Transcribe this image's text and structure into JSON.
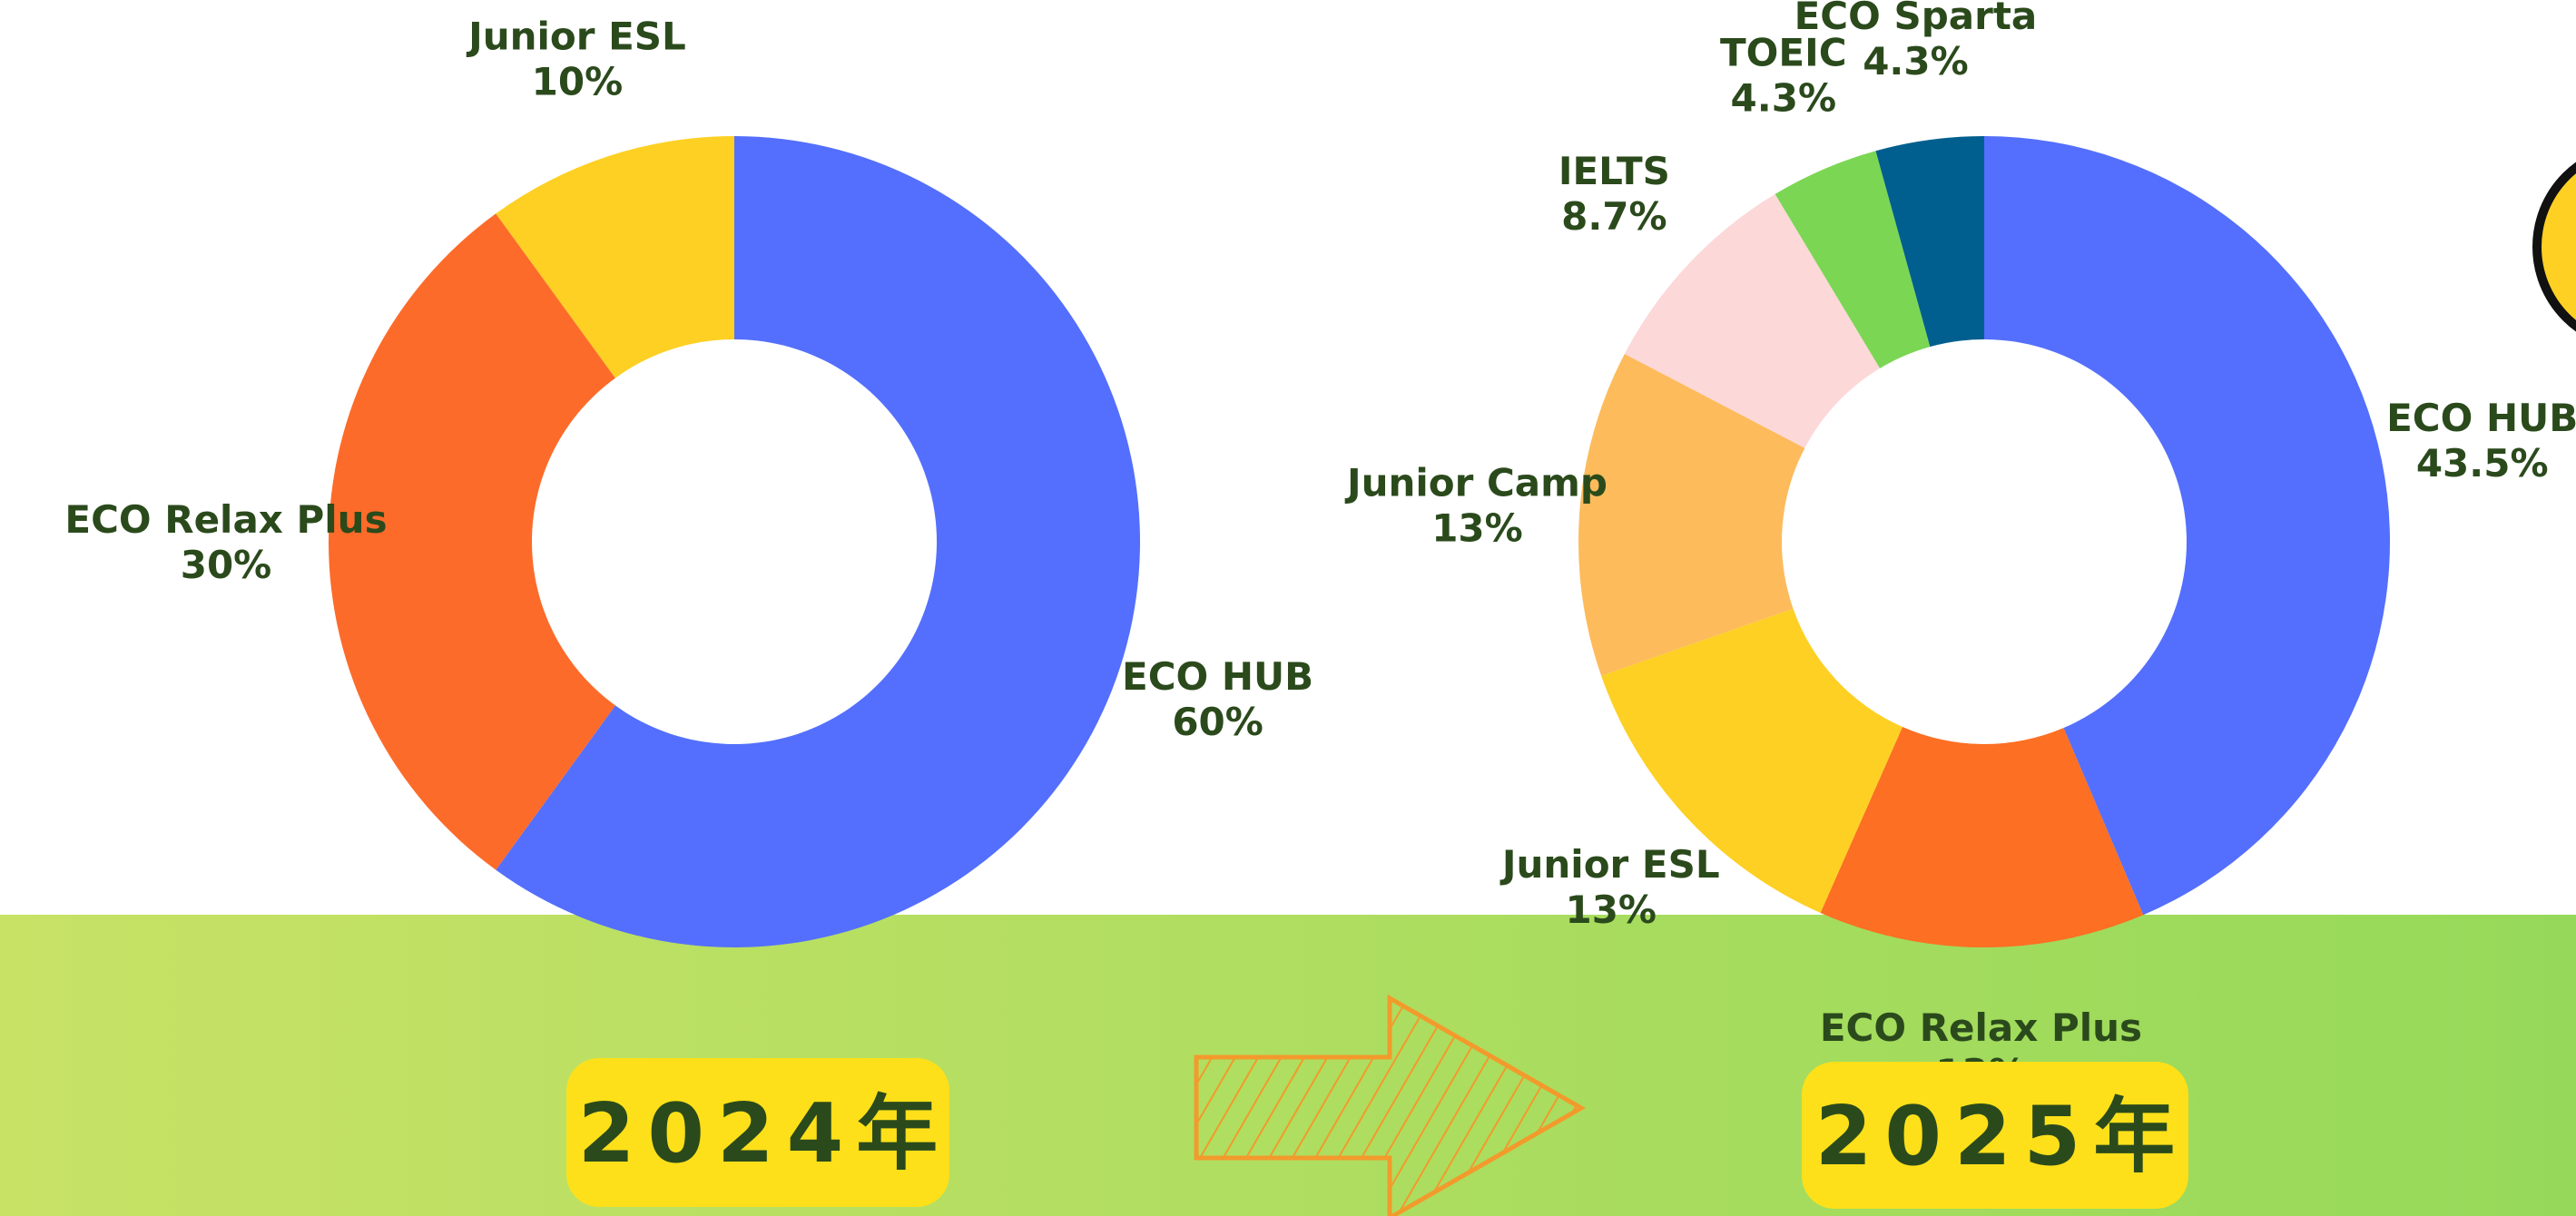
{
  "chart_data": [
    {
      "type": "donut",
      "title": "2024年",
      "categories": [
        "ECO HUB",
        "ECO Relax Plus",
        "Junior ESL"
      ],
      "values": [
        60,
        30,
        10
      ],
      "value_labels": [
        "60%",
        "30%",
        "10%"
      ],
      "colors": [
        "#546ffd",
        "#fd6b2a",
        "#fdd023"
      ]
    },
    {
      "type": "donut",
      "title": "2025年",
      "categories": [
        "ECO HUB",
        "ECO Relax Plus",
        "Junior ESL",
        "Junior Camp",
        "IELTS",
        "TOEIC",
        "ECO Sparta"
      ],
      "values": [
        43.5,
        13,
        13,
        13,
        8.7,
        4.3,
        4.3
      ],
      "value_labels": [
        "43.5%",
        "13%",
        "13%",
        "13%",
        "8.7%",
        "4.3%",
        "4.3%"
      ],
      "colors": [
        "#546ffd",
        "#fd6f22",
        "#fdd023",
        "#fdbb5c",
        "#fdd8d9",
        "#7bd654",
        "#005f8e"
      ]
    }
  ]
}
